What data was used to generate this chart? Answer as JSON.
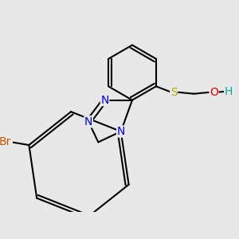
{
  "background_color": "#e8e8e8",
  "bond_color": "#000000",
  "bond_width": 1.5,
  "atom_colors": {
    "N": "#0000ee",
    "Br": "#cc5500",
    "S": "#aaaa00",
    "O": "#dd0000",
    "H": "#00aaaa",
    "C": "#000000"
  },
  "font_size": 9,
  "fig_size": [
    3.0,
    3.0
  ],
  "dpi": 100
}
